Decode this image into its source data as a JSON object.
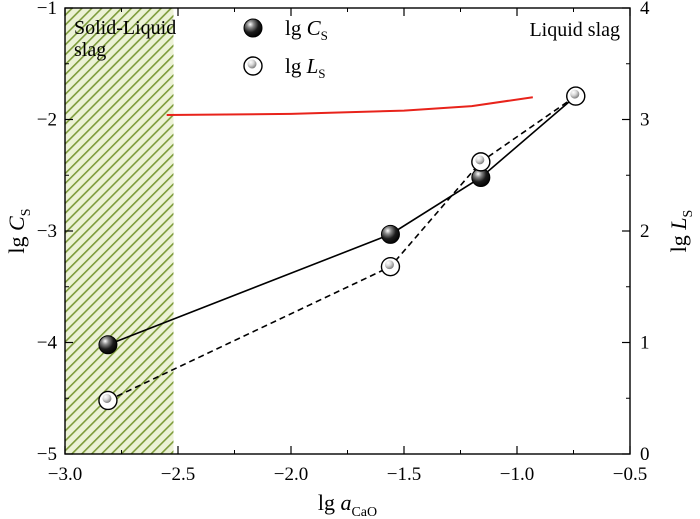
{
  "chart_data": {
    "type": "scatter",
    "xlabel": {
      "base": "lg a",
      "sub": "CaO"
    },
    "ylabel_left": {
      "base": "lg C",
      "sub": "S"
    },
    "ylabel_right": {
      "base": "lg L",
      "sub": "S"
    },
    "xlim": [
      -3.0,
      -0.5
    ],
    "ylim_left": [
      -5,
      -1
    ],
    "ylim_right": [
      0,
      4
    ],
    "x_ticks": [
      -3.0,
      -2.5,
      -2.0,
      -1.5,
      -1.0,
      -0.5
    ],
    "x_tick_labels": [
      "−3.0",
      "−2.5",
      "−2.0",
      "−1.5",
      "−1.0",
      "−0.5"
    ],
    "y_left_ticks": [
      -5,
      -4,
      -3,
      -2,
      -1
    ],
    "y_left_tick_labels": [
      "−5",
      "−4",
      "−3",
      "−2",
      "−1"
    ],
    "y_right_ticks": [
      0,
      1,
      2,
      3,
      4
    ],
    "y_right_tick_labels": [
      "0",
      "1",
      "2",
      "3",
      "4"
    ],
    "grid": false,
    "legend_position": "top-center",
    "series": [
      {
        "name": {
          "base": "lg C",
          "sub": "S"
        },
        "axis": "left",
        "marker": "filled-sphere",
        "line": "solid",
        "x": [
          -2.81,
          -1.56,
          -1.16,
          -0.74
        ],
        "y": [
          -4.02,
          -3.03,
          -2.52,
          -1.79
        ]
      },
      {
        "name": {
          "base": "lg L",
          "sub": "S"
        },
        "axis": "right",
        "marker": "open-sphere",
        "line": "dashed",
        "x": [
          -2.81,
          -1.56,
          -1.16,
          -0.74
        ],
        "y": [
          0.48,
          1.68,
          2.62,
          3.21
        ]
      }
    ],
    "boundary_curve": {
      "axis": "left",
      "color": "#e8231b",
      "x": [
        -2.55,
        -2.0,
        -1.5,
        -1.2,
        -0.93
      ],
      "y": [
        -1.96,
        -1.95,
        -1.92,
        -1.88,
        -1.8
      ]
    },
    "regions": [
      {
        "label_lines": [
          "Solid-Liquid",
          "slag"
        ],
        "x_range": [
          -3.0,
          -2.52
        ],
        "fill": "hatched-green"
      },
      {
        "label_lines": [
          "Liquid slag"
        ]
      }
    ]
  }
}
